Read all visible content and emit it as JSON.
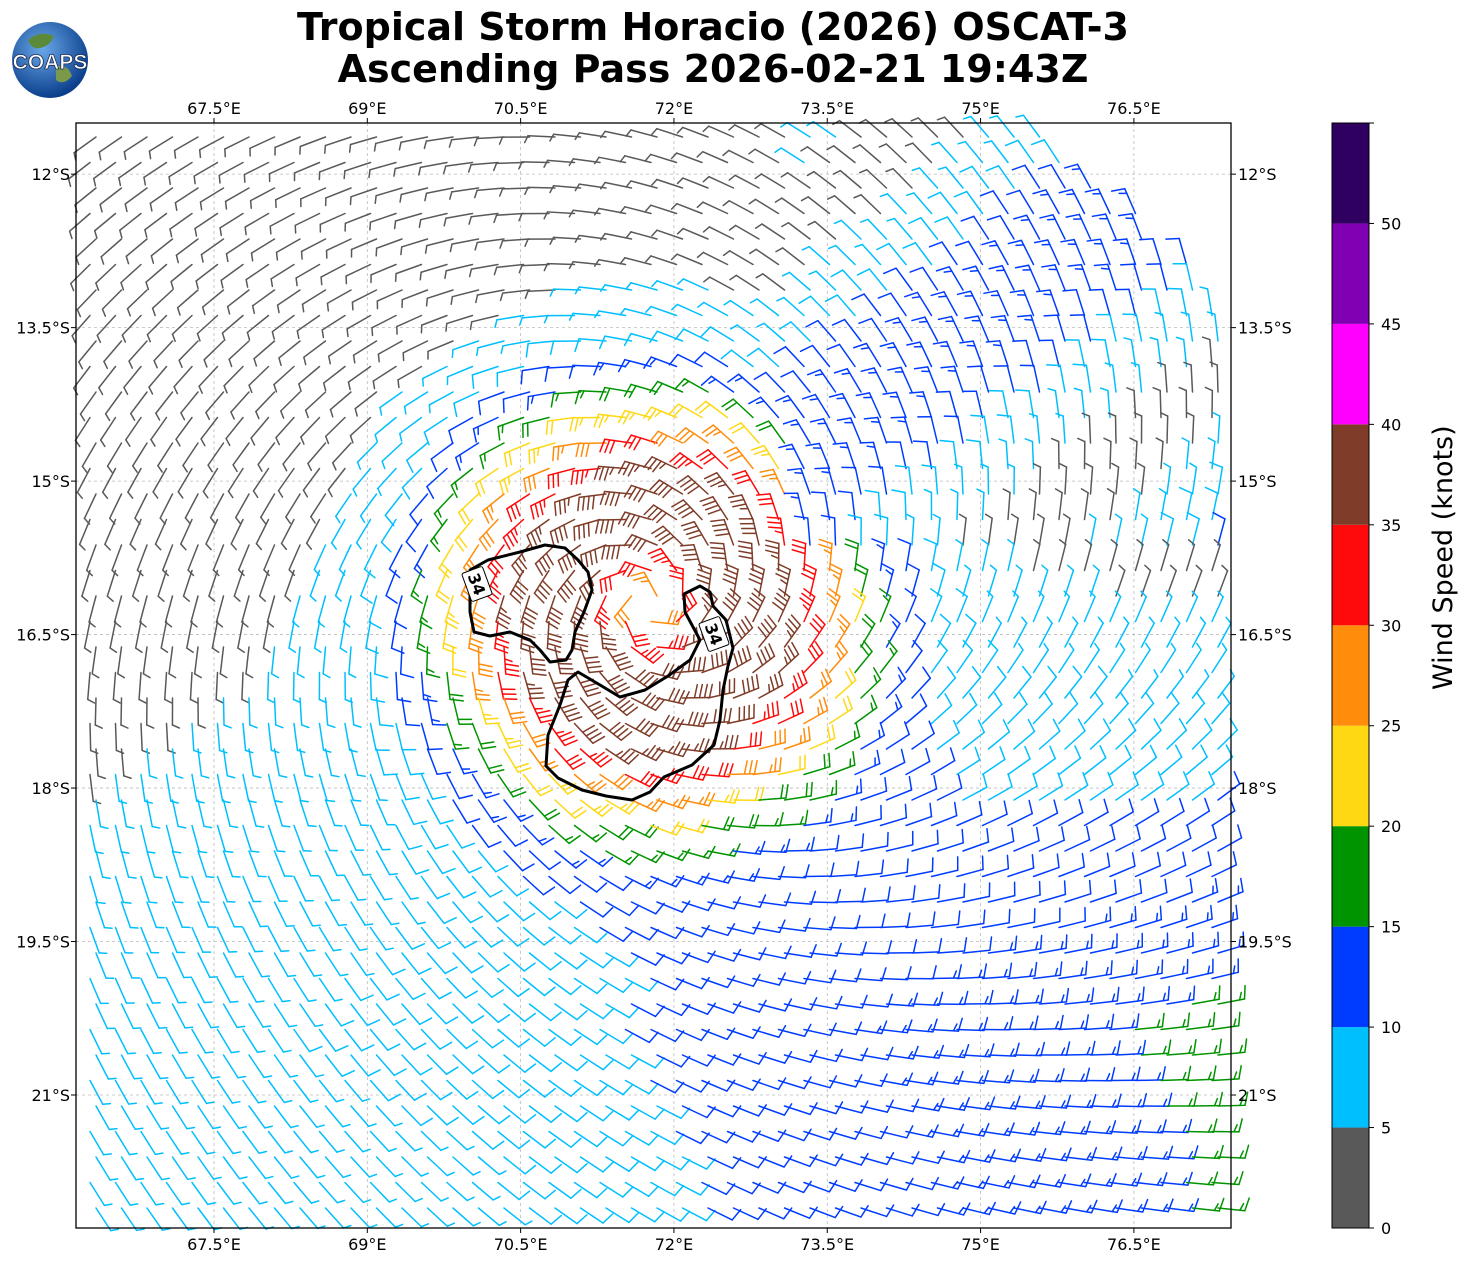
{
  "header": {
    "title_line1": "Tropical Storm Horacio (2026) OSCAT-3",
    "title_line2": "Ascending Pass 2026-02-21 19:43Z",
    "logo_text": "COAPS"
  },
  "map": {
    "lon_ticks": [
      "67.5°E",
      "69°E",
      "70.5°E",
      "72°E",
      "73.5°E",
      "75°E",
      "76.5°E"
    ],
    "lat_ticks": [
      "12°S",
      "13.5°S",
      "15°S",
      "16.5°S",
      "18°S",
      "19.5°S",
      "21°S"
    ],
    "lon_range": [
      66.15,
      77.45
    ],
    "lat_range": [
      -22.3,
      -11.5
    ],
    "storm_center": {
      "lon": 71.75,
      "lat": -16.2
    },
    "grid": true,
    "contour_label": "34"
  },
  "colorbar": {
    "label": "Wind Speed (knots)",
    "tick_labels": [
      "0",
      "5",
      "10",
      "15",
      "20",
      "25",
      "30",
      "35",
      "40",
      "45",
      "50"
    ],
    "bins": [
      {
        "from": 0,
        "to": 5,
        "color": "#595959"
      },
      {
        "from": 5,
        "to": 10,
        "color": "#00bfff"
      },
      {
        "from": 10,
        "to": 15,
        "color": "#003cff"
      },
      {
        "from": 15,
        "to": 20,
        "color": "#009400"
      },
      {
        "from": 20,
        "to": 25,
        "color": "#ffd814"
      },
      {
        "from": 25,
        "to": 30,
        "color": "#ff8c0a"
      },
      {
        "from": 30,
        "to": 35,
        "color": "#ff0a0a"
      },
      {
        "from": 35,
        "to": 40,
        "color": "#7f3c28"
      },
      {
        "from": 40,
        "to": 45,
        "color": "#ff00ff"
      },
      {
        "from": 45,
        "to": 50,
        "color": "#8000b4"
      },
      {
        "from": 50,
        "to": 55,
        "color": "#300060"
      }
    ]
  }
}
